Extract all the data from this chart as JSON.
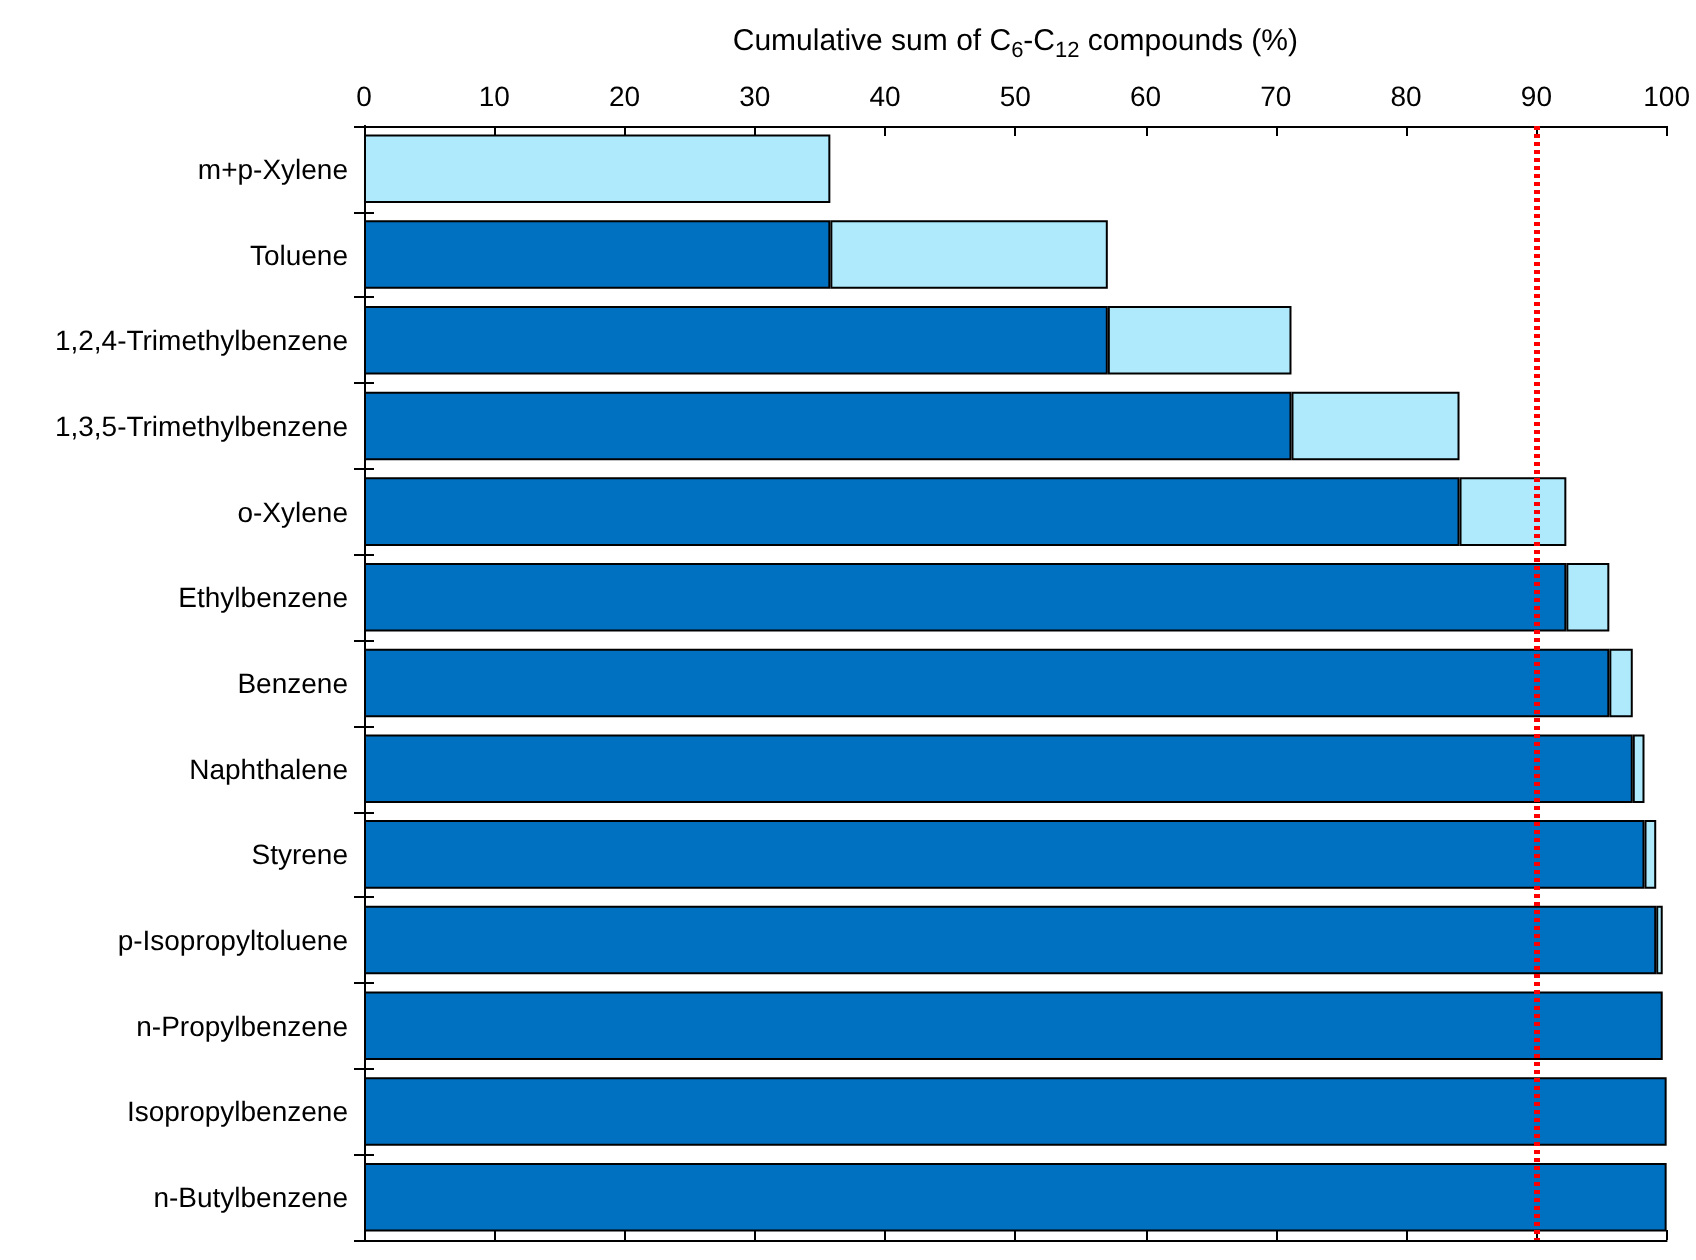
{
  "chart_data": {
    "type": "bar",
    "orientation": "horizontal",
    "stacked": true,
    "xlabel": "Cumulative sum of C$_{6}$-C$_{12}$ compounds (%)",
    "categories": [
      "m+p-Xylene",
      "Toluene",
      "1,2,4-Trimethylbenzene",
      "1,3,5-Trimethylbenzene",
      "o-Xylene",
      "Ethylbenzene",
      "Benzene",
      "Naphthalene",
      "Styrene",
      "p-Isopropyltoluene",
      "n-Propylbenzene",
      "Isopropylbenzene",
      "n-Butylbenzene"
    ],
    "series": [
      {
        "color": "#0070c0",
        "values": [
          null,
          35.8,
          57.1,
          71.2,
          84.1,
          92.3,
          95.6,
          97.4,
          98.3,
          99.2,
          99.7,
          100,
          100
        ]
      },
      {
        "color": "#aeeafc",
        "values": [
          35.8,
          21.3,
          14.1,
          12.9,
          8.2,
          3.3,
          1.8,
          0.9,
          0.9,
          0.5,
          null,
          null,
          null
        ]
      }
    ],
    "xlim": [
      0,
      100
    ],
    "xticks": [
      0,
      10,
      20,
      30,
      40,
      50,
      60,
      70,
      80,
      90,
      100
    ],
    "ref_lines": [
      {
        "axis": "x",
        "value": 90,
        "color": "#ff0000",
        "line_style": "dotted"
      }
    ]
  }
}
